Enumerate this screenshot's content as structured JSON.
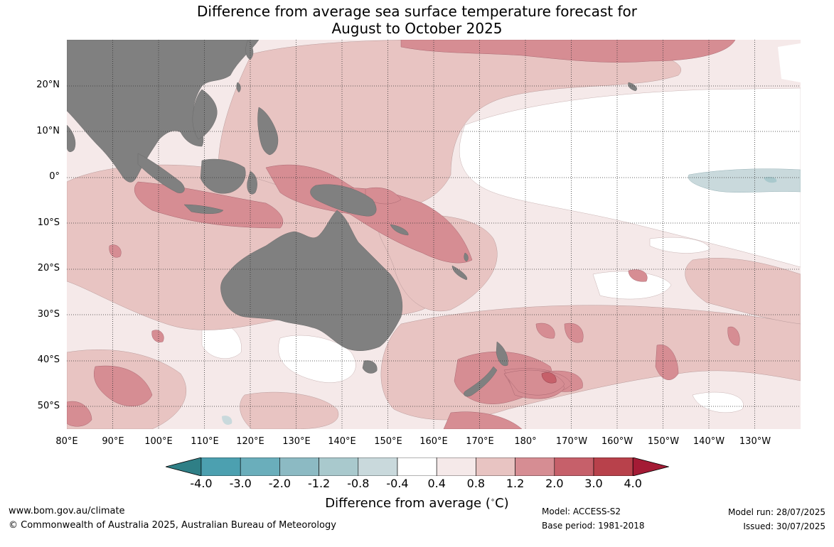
{
  "title_line1": "Difference from average sea surface temperature forecast for",
  "title_line2": "August to October 2025",
  "lat_labels": [
    "20°N",
    "10°N",
    "0°",
    "10°S",
    "20°S",
    "30°S",
    "40°S",
    "50°S"
  ],
  "lon_labels": [
    "80°E",
    "90°E",
    "100°E",
    "110°E",
    "120°E",
    "130°E",
    "140°E",
    "150°E",
    "160°E",
    "170°E",
    "180°",
    "170°W",
    "160°W",
    "150°W",
    "140°W",
    "130°W"
  ],
  "colorbar": {
    "ticks": [
      "-4.0",
      "-3.0",
      "-2.0",
      "-1.2",
      "-0.8",
      "-0.4",
      "0.4",
      "0.8",
      "1.2",
      "2.0",
      "3.0",
      "4.0"
    ],
    "colors": [
      "#2f7f86",
      "#4ca0b0",
      "#6aaebb",
      "#8cbac3",
      "#a9c9cd",
      "#c9d9dc",
      "#ffffff",
      "#f5e9e9",
      "#e8c4c2",
      "#d68d93",
      "#c6606a",
      "#b8414b",
      "#a41b35"
    ],
    "label": "Difference from average ($^\\circ$C)",
    "label_text": "Difference from average (",
    "label_unit": "C)"
  },
  "map_colors": {
    "land": "#808080",
    "ocean_white": "#ffffff",
    "band_0_4": "#f5e9e9",
    "band_0_8": "#e8c4c2",
    "band_1_2": "#d68d93",
    "band_2_0": "#c6606a",
    "cool": "#c9d9dc"
  },
  "footer": {
    "website": "www.bom.gov.au/climate",
    "copyright": "© Commonwealth of Australia 2025, Australian Bureau of Meteorology",
    "model": "Model: ACCESS-S2",
    "base_period": "Base period: 1981-2018",
    "model_run": "Model run: 28/07/2025",
    "issued": "Issued: 30/07/2025"
  }
}
